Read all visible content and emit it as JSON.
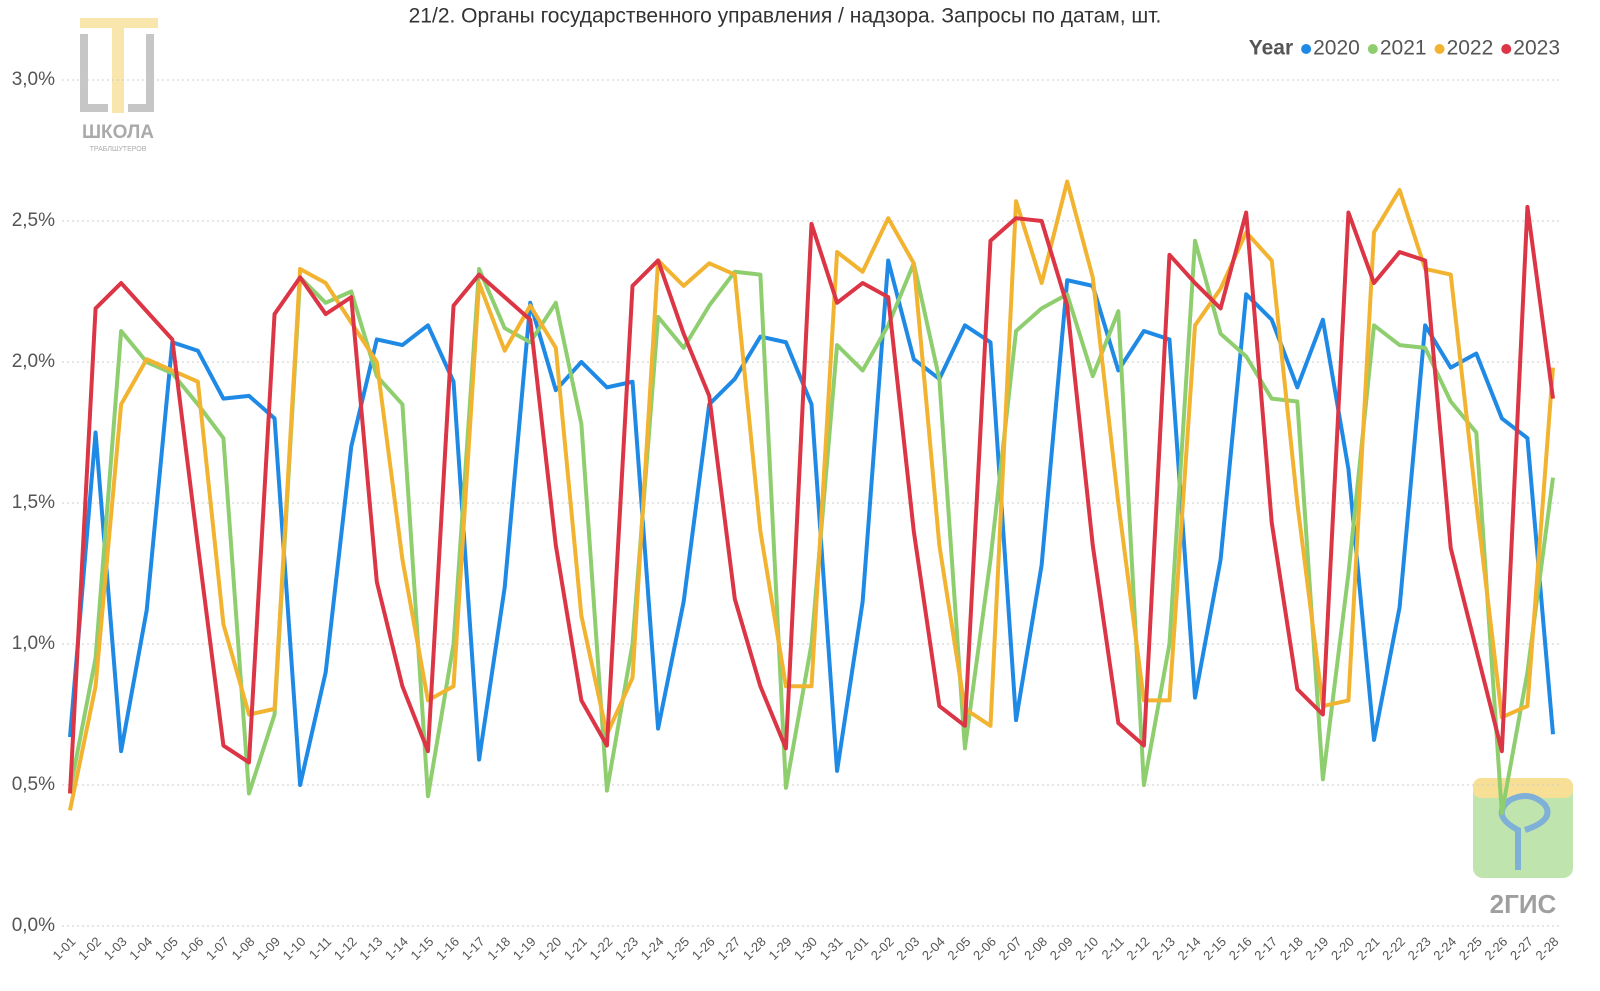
{
  "chart_data": {
    "type": "line",
    "title": "21/2. Органы государственного управления / надзора. Запросы по датам, шт.",
    "legend_title": "Year",
    "legend_position": "top-right",
    "grid": true,
    "categories": [
      "1-01",
      "1-02",
      "1-03",
      "1-04",
      "1-05",
      "1-06",
      "1-07",
      "1-08",
      "1-09",
      "1-10",
      "1-11",
      "1-12",
      "1-13",
      "1-14",
      "1-15",
      "1-16",
      "1-17",
      "1-18",
      "1-19",
      "1-20",
      "1-21",
      "1-22",
      "1-23",
      "1-24",
      "1-25",
      "1-26",
      "1-27",
      "1-28",
      "1-29",
      "1-30",
      "1-31",
      "2-01",
      "2-02",
      "2-03",
      "2-04",
      "2-05",
      "2-06",
      "2-07",
      "2-08",
      "2-09",
      "2-10",
      "2-11",
      "2-12",
      "2-13",
      "2-14",
      "2-15",
      "2-16",
      "2-17",
      "2-18",
      "2-19",
      "2-20",
      "2-21",
      "2-22",
      "2-23",
      "2-24",
      "2-25",
      "2-26",
      "2-27",
      "2-28"
    ],
    "ylim": [
      0,
      3.2
    ],
    "yticks": [
      {
        "value": 0,
        "label": "0,0%"
      },
      {
        "value": 0.5,
        "label": "0,5%"
      },
      {
        "value": 1,
        "label": "1,0%"
      },
      {
        "value": 1.5,
        "label": "1,5%"
      },
      {
        "value": 2,
        "label": "2,0%"
      },
      {
        "value": 2.5,
        "label": "2,5%"
      },
      {
        "value": 3,
        "label": "3,0%"
      }
    ],
    "series": [
      {
        "name": "2020",
        "color": "#1f8ae6",
        "values": [
          0.67,
          1.75,
          0.62,
          1.12,
          2.07,
          2.04,
          1.87,
          1.88,
          1.8,
          0.5,
          0.9,
          1.7,
          2.08,
          2.06,
          2.13,
          1.93,
          0.59,
          1.2,
          2.21,
          1.9,
          2.0,
          1.91,
          1.93,
          0.7,
          1.15,
          1.85,
          1.94,
          2.09,
          2.07,
          1.85,
          0.55,
          1.15,
          2.36,
          2.01,
          1.94,
          2.13,
          2.07,
          0.73,
          1.28,
          2.29,
          2.27,
          1.97,
          2.11,
          2.08,
          0.81,
          1.3,
          2.24,
          2.15,
          1.91,
          2.15,
          1.62,
          0.66,
          1.13,
          2.13,
          1.98,
          2.03,
          1.8,
          1.73,
          0.68
        ]
      },
      {
        "name": "2021",
        "color": "#8fce6f",
        "values": [
          0.48,
          0.95,
          2.11,
          2.0,
          1.96,
          1.85,
          1.73,
          0.47,
          0.75,
          2.3,
          2.21,
          2.25,
          1.95,
          1.85,
          0.46,
          1.0,
          2.33,
          2.12,
          2.07,
          2.21,
          1.78,
          0.48,
          1.0,
          2.16,
          2.05,
          2.2,
          2.32,
          2.31,
          0.49,
          1.0,
          2.06,
          1.97,
          2.13,
          2.35,
          1.94,
          0.63,
          1.3,
          2.11,
          2.19,
          2.24,
          1.95,
          2.18,
          0.5,
          1.0,
          2.43,
          2.1,
          2.02,
          1.87,
          1.86,
          0.52,
          1.25,
          2.13,
          2.06,
          2.05,
          1.86,
          1.75,
          0.4,
          0.9,
          1.59
        ]
      },
      {
        "name": "2022",
        "color": "#f2b330",
        "values": [
          0.41,
          0.85,
          1.85,
          2.01,
          1.97,
          1.93,
          1.07,
          0.75,
          0.77,
          2.33,
          2.28,
          2.14,
          2.0,
          1.3,
          0.8,
          0.85,
          2.28,
          2.04,
          2.2,
          2.05,
          1.1,
          0.68,
          0.88,
          2.36,
          2.27,
          2.35,
          2.31,
          1.4,
          0.85,
          0.85,
          2.39,
          2.32,
          2.51,
          2.35,
          1.35,
          0.77,
          0.71,
          2.57,
          2.28,
          2.64,
          2.3,
          1.5,
          0.8,
          0.8,
          2.13,
          2.26,
          2.46,
          2.36,
          1.5,
          0.78,
          0.8,
          2.46,
          2.61,
          2.33,
          2.31,
          1.5,
          0.74,
          0.78,
          1.98
        ]
      },
      {
        "name": "2023",
        "color": "#dc3545",
        "values": [
          0.47,
          2.19,
          2.28,
          2.18,
          2.08,
          1.35,
          0.64,
          0.58,
          2.17,
          2.3,
          2.17,
          2.23,
          1.22,
          0.85,
          0.62,
          2.2,
          2.31,
          2.23,
          2.15,
          1.35,
          0.8,
          0.64,
          2.27,
          2.36,
          2.1,
          1.88,
          1.16,
          0.85,
          0.63,
          2.49,
          2.21,
          2.28,
          2.23,
          1.4,
          0.78,
          0.71,
          2.43,
          2.51,
          2.5,
          2.2,
          1.35,
          0.72,
          0.64,
          2.38,
          2.28,
          2.19,
          2.53,
          1.43,
          0.84,
          0.75,
          2.53,
          2.28,
          2.39,
          2.36,
          1.34,
          0.98,
          0.62,
          2.55,
          1.87
        ]
      }
    ]
  },
  "logos": {
    "school": "ШКОЛА",
    "school_sub": "ТРАБЛШУТЕРОВ",
    "brand": "2ГИС"
  }
}
